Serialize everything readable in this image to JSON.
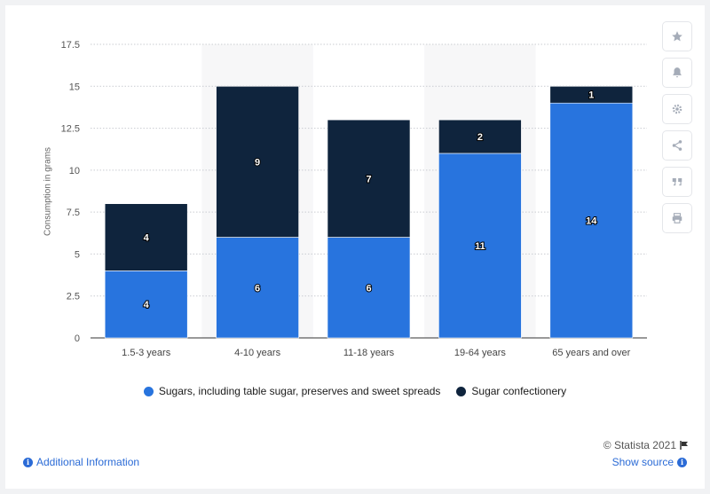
{
  "chart_data": {
    "type": "bar",
    "stacked": true,
    "categories": [
      "1.5-3 years",
      "4-10 years",
      "11-18 years",
      "19-64 years",
      "65 years and over"
    ],
    "series": [
      {
        "name": "Sugars, including table sugar, preserves and sweet spreads",
        "color": "#2874de",
        "values": [
          4,
          6,
          6,
          11,
          14
        ]
      },
      {
        "name": "Sugar confectionery",
        "color": "#0f243d",
        "values": [
          4,
          9,
          7,
          2,
          1
        ]
      }
    ],
    "ylabel": "Consumption in grams",
    "ylim": [
      0,
      17.5
    ],
    "yticks": [
      "0",
      "2.5",
      "5",
      "7.5",
      "10",
      "12.5",
      "15",
      "17.5"
    ],
    "grid": true,
    "legend": "bottom"
  },
  "toolbar": {
    "icons": [
      "star-icon",
      "bell-icon",
      "gear-icon",
      "share-icon",
      "quote-icon",
      "print-icon"
    ]
  },
  "footer": {
    "credit": "© Statista 2021",
    "additional_info": "Additional Information",
    "show_source": "Show source"
  }
}
